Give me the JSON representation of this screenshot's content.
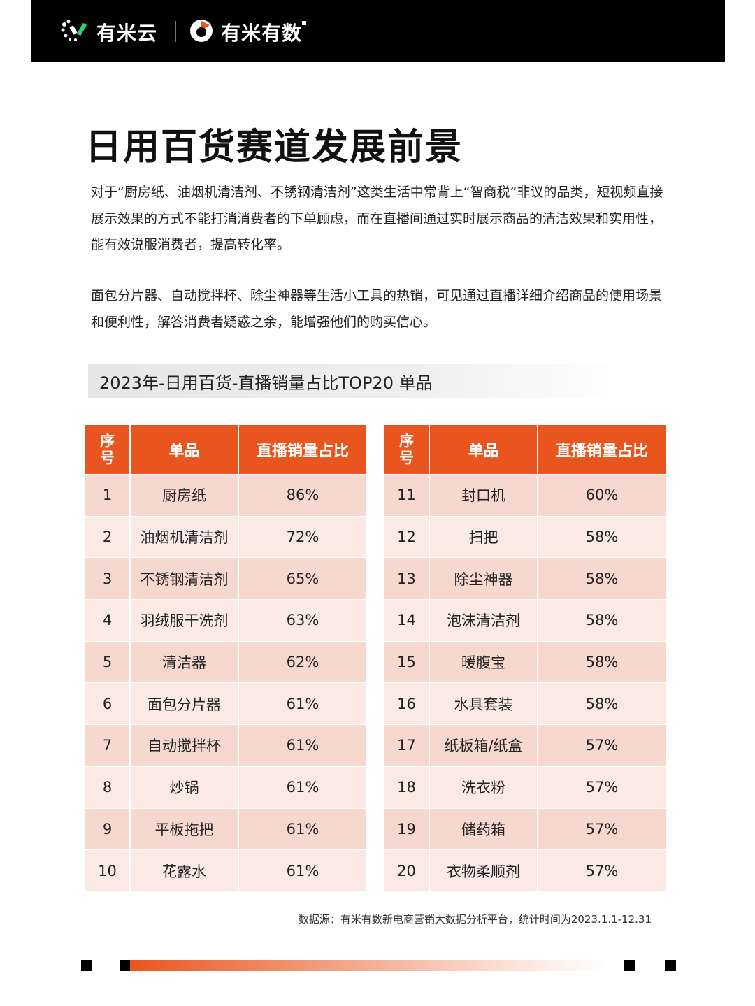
{
  "header": {
    "brand1": "有米云",
    "brand2": "有米有数"
  },
  "title": "日用百货赛道发展前景",
  "paragraphs": [
    "对于“厨房纸、油烟机清洁剂、不锈钢清洁剂”这类生活中常背上“智商税”非议的品类，短视频直接展示效果的方式不能打消消费者的下单顾虑，而在直播间通过实时展示商品的清洁效果和实用性，能有效说服消费者，提高转化率。",
    "面包分片器、自动搅拌杯、除尘神器等生活小工具的热销，可见通过直播详细介绍商品的使用场景和便利性，解答消费者疑惑之余，能增强他们的购买信心。"
  ],
  "subtitle": "2023年-日用百货-直播销量占比TOP20 单品",
  "table_headers": {
    "index": "序\n号",
    "name": "单品",
    "pct": "直播销量占比"
  },
  "left_rows": [
    {
      "idx": "1",
      "name": "厨房纸",
      "pct": "86%"
    },
    {
      "idx": "2",
      "name": "油烟机清洁剂",
      "pct": "72%"
    },
    {
      "idx": "3",
      "name": "不锈钢清洁剂",
      "pct": "65%"
    },
    {
      "idx": "4",
      "name": "羽绒服干洗剂",
      "pct": "63%"
    },
    {
      "idx": "5",
      "name": "清洁器",
      "pct": "62%"
    },
    {
      "idx": "6",
      "name": "面包分片器",
      "pct": "61%"
    },
    {
      "idx": "7",
      "name": "自动搅拌杯",
      "pct": "61%"
    },
    {
      "idx": "8",
      "name": "炒锅",
      "pct": "61%"
    },
    {
      "idx": "9",
      "name": "平板拖把",
      "pct": "61%"
    },
    {
      "idx": "10",
      "name": "花露水",
      "pct": "61%"
    }
  ],
  "right_rows": [
    {
      "idx": "11",
      "name": "封口机",
      "pct": "60%"
    },
    {
      "idx": "12",
      "name": "扫把",
      "pct": "58%"
    },
    {
      "idx": "13",
      "name": "除尘神器",
      "pct": "58%"
    },
    {
      "idx": "14",
      "name": "泡沫清洁剂",
      "pct": "58%"
    },
    {
      "idx": "15",
      "name": "暖腹宝",
      "pct": "58%"
    },
    {
      "idx": "16",
      "name": "水具套装",
      "pct": "58%"
    },
    {
      "idx": "17",
      "name": "纸板箱/纸盒",
      "pct": "57%"
    },
    {
      "idx": "18",
      "name": "洗衣粉",
      "pct": "57%"
    },
    {
      "idx": "19",
      "name": "储药箱",
      "pct": "57%"
    },
    {
      "idx": "20",
      "name": "衣物柔顺剂",
      "pct": "57%"
    }
  ],
  "source": "数据源：有米有数新电商营销大数据分析平台，统计时间为2023.1.1-12.31",
  "colors": {
    "accent": "#e9551f",
    "row_dark": "#f7d8cf",
    "row_light": "#fbe9e4",
    "header_bg": "#000000"
  }
}
